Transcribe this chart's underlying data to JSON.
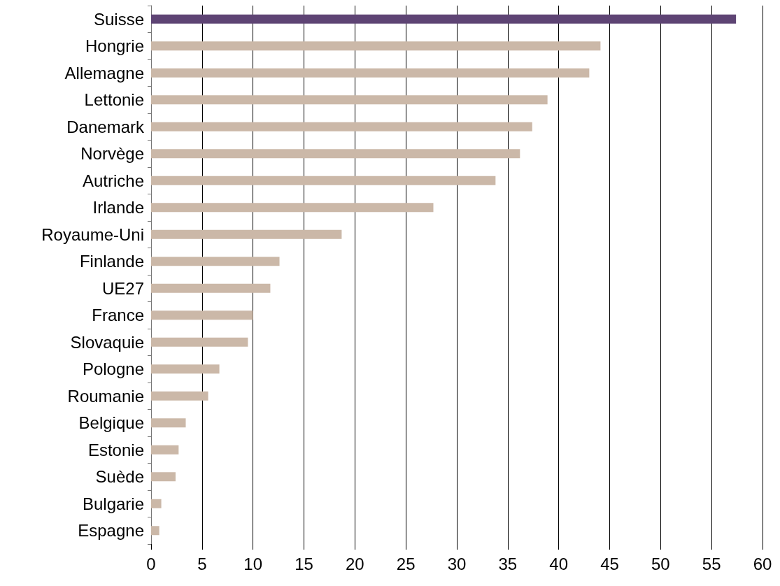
{
  "chart_data": {
    "type": "bar",
    "orientation": "horizontal",
    "categories": [
      "Suisse",
      "Hongrie",
      "Allemagne",
      "Lettonie",
      "Danemark",
      "Norvège",
      "Autriche",
      "Irlande",
      "Royaume-Uni",
      "Finlande",
      "UE27",
      "France",
      "Slovaquie",
      "Pologne",
      "Roumanie",
      "Belgique",
      "Estonie",
      "Suède",
      "Bulgarie",
      "Espagne"
    ],
    "values": [
      57.4,
      44.1,
      43.0,
      38.9,
      37.4,
      36.2,
      33.8,
      27.7,
      18.7,
      12.6,
      11.7,
      10.0,
      9.5,
      6.7,
      5.6,
      3.4,
      2.7,
      2.4,
      1.0,
      0.8
    ],
    "colors": [
      "#5e4474",
      "#cbb8a8",
      "#cbb8a8",
      "#cbb8a8",
      "#cbb8a8",
      "#cbb8a8",
      "#cbb8a8",
      "#cbb8a8",
      "#cbb8a8",
      "#cbb8a8",
      "#cbb8a8",
      "#cbb8a8",
      "#cbb8a8",
      "#cbb8a8",
      "#cbb8a8",
      "#cbb8a8",
      "#cbb8a8",
      "#cbb8a8",
      "#cbb8a8",
      "#cbb8a8"
    ],
    "xlim": [
      0,
      60
    ],
    "xticks": [
      0,
      5,
      10,
      15,
      20,
      25,
      30,
      35,
      40,
      45,
      50,
      55,
      60
    ],
    "grid": "x"
  }
}
